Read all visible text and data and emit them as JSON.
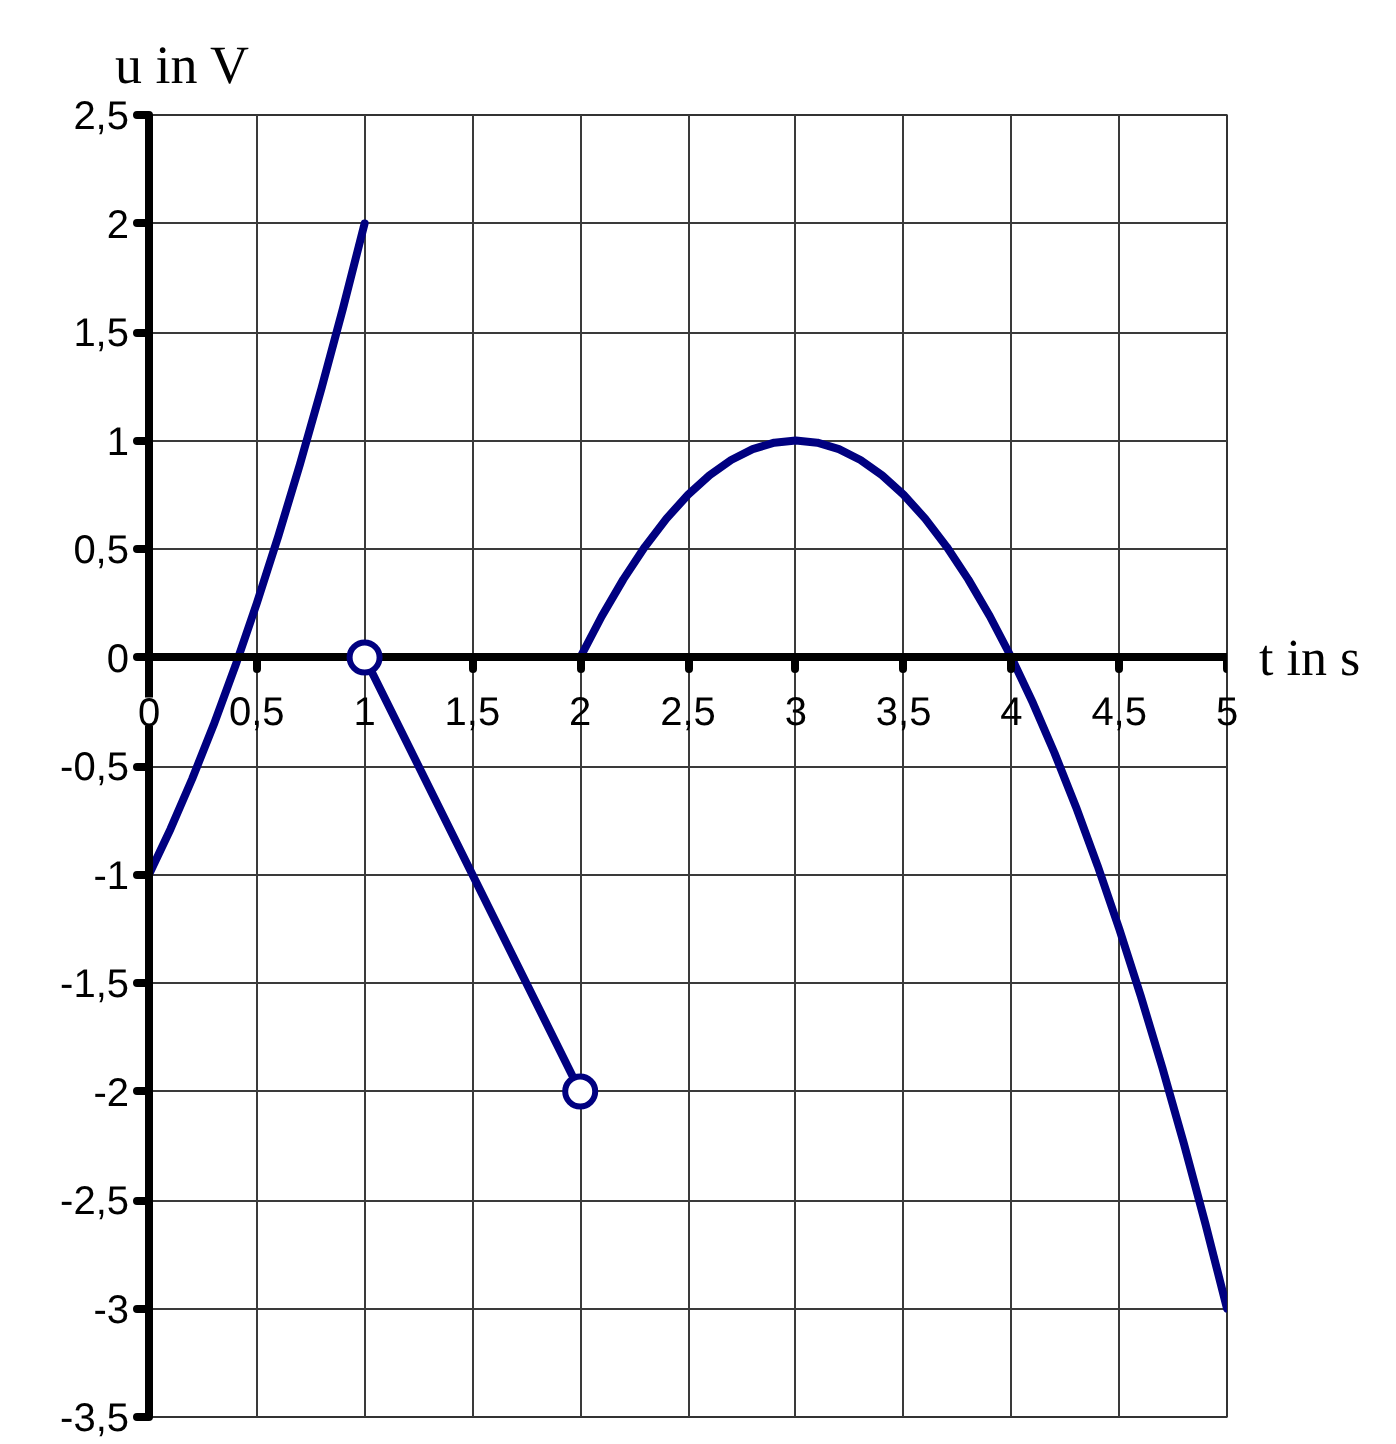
{
  "chart_data": {
    "type": "line",
    "xlabel": "t in s",
    "ylabel": "u in V",
    "xlim": [
      0,
      5
    ],
    "ylim": [
      -3.5,
      2.5
    ],
    "xticks": [
      0,
      {
        "value": 0.5,
        "label": "0,5"
      },
      1,
      {
        "value": 1.5,
        "label": "1,5"
      },
      2,
      {
        "value": 2.5,
        "label": "2,5"
      },
      3,
      {
        "value": 3.5,
        "label": "3,5"
      },
      4,
      {
        "value": 4.5,
        "label": "4,5"
      },
      5
    ],
    "yticks": [
      {
        "value": -3.5,
        "label": "-3,5"
      },
      -3,
      {
        "value": -2.5,
        "label": "-2,5"
      },
      -2,
      {
        "value": -1.5,
        "label": "-1,5"
      },
      -1,
      {
        "value": -0.5,
        "label": "-0,5"
      },
      0,
      {
        "value": 0.5,
        "label": "0,5"
      },
      1,
      {
        "value": 1.5,
        "label": "1,5"
      },
      2,
      {
        "value": 2.5,
        "label": "2,5"
      }
    ],
    "grid": true,
    "line_style": "solid",
    "series": [
      {
        "color": "#000080",
        "x": [
          0,
          0.1,
          0.2,
          0.3,
          0.4,
          0.5,
          0.6,
          0.7,
          0.8,
          0.9,
          1
        ],
        "values": [
          -1,
          -0.79,
          -0.56,
          -0.31,
          -0.04,
          0.25,
          0.56,
          0.89,
          1.24,
          1.61,
          2
        ]
      },
      {
        "color": "#000080",
        "x": [
          1,
          2
        ],
        "values": [
          0,
          -2
        ],
        "marker": "circle"
      },
      {
        "color": "#000080",
        "x": [
          2,
          2.1,
          2.2,
          2.3,
          2.4,
          2.5,
          2.6,
          2.7,
          2.8,
          2.9,
          3,
          3.1,
          3.2,
          3.3,
          3.4,
          3.5,
          3.6,
          3.7,
          3.8,
          3.9,
          4,
          4.1,
          4.2,
          4.3,
          4.4,
          4.5,
          4.6,
          4.7,
          4.8,
          4.9,
          5
        ],
        "values": [
          0,
          0.19,
          0.36,
          0.51,
          0.64,
          0.75,
          0.84,
          0.91,
          0.96,
          0.99,
          1,
          0.99,
          0.96,
          0.91,
          0.84,
          0.75,
          0.64,
          0.51,
          0.36,
          0.19,
          0,
          -0.21,
          -0.44,
          -0.69,
          -0.96,
          -1.25,
          -1.56,
          -1.89,
          -2.24,
          -2.61,
          -3
        ]
      }
    ]
  }
}
